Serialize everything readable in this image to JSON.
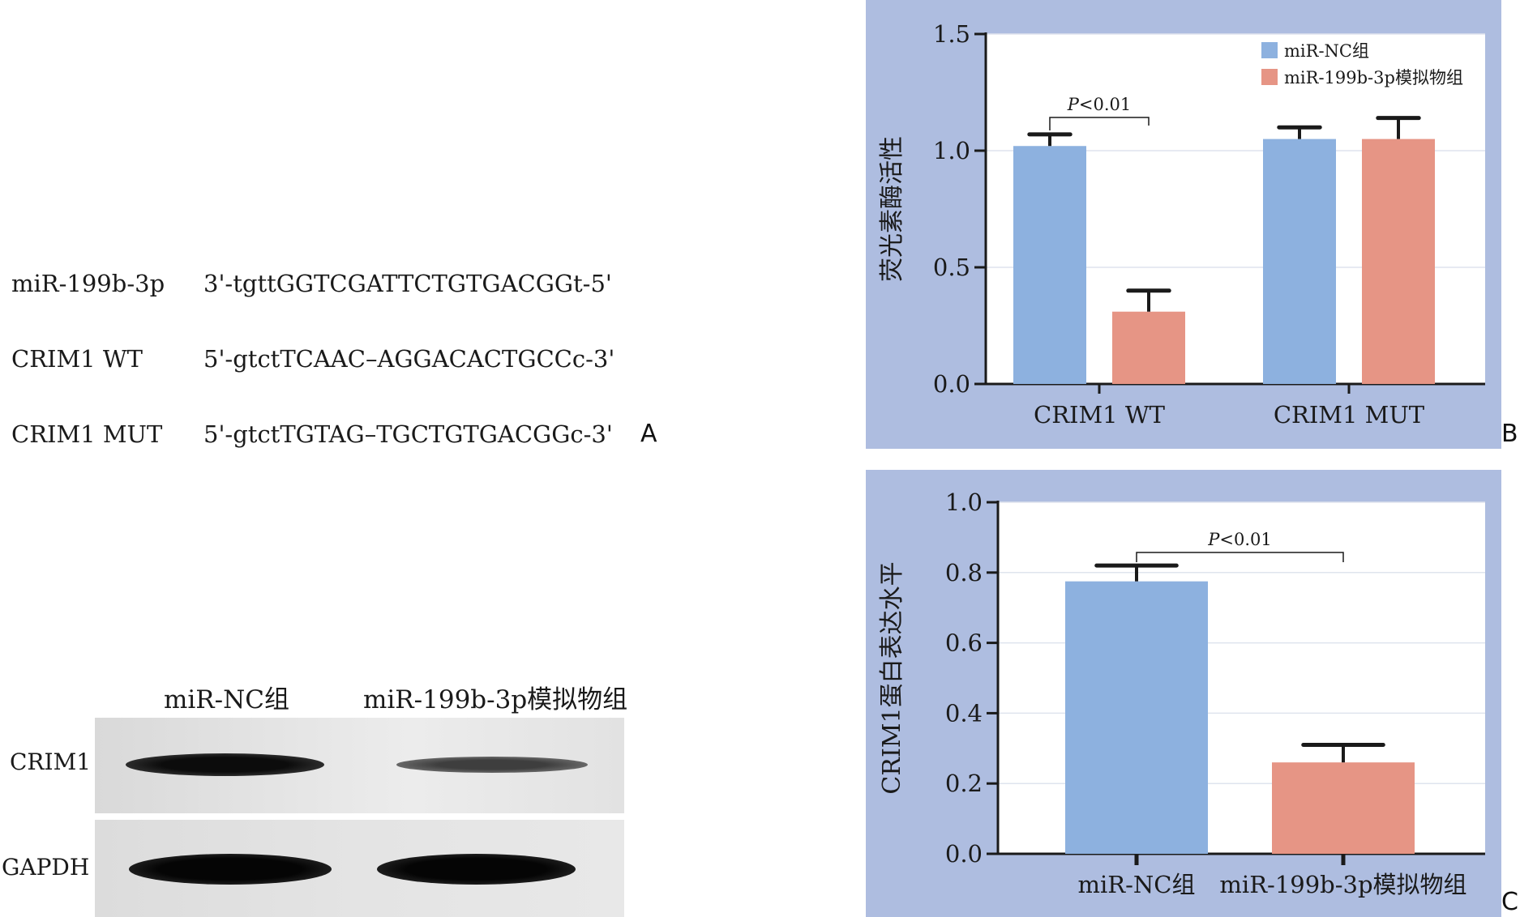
{
  "panel_labels": {
    "a": "A",
    "b": "B",
    "c": "C"
  },
  "sequences": [
    {
      "name": "miR-199b-3p",
      "seq": "3'-tgttGGTCGATTCTGTGACGGt-5'"
    },
    {
      "name": "CRIM1 WT",
      "seq": "5'-gtctTCAAC–AGGACACTGCCc-3'"
    },
    {
      "name": "CRIM1 MUT",
      "seq": "5'-gtctTGTAG–TGCTGTGACGGc-3'"
    }
  ],
  "western_blot": {
    "columns": [
      "miR-NC组",
      "miR-199b-3p模拟物组"
    ],
    "rows": [
      {
        "label": "CRIM1",
        "band_intensity": [
          0.95,
          0.55
        ]
      },
      {
        "label": "GAPDH",
        "band_intensity": [
          1.0,
          1.0
        ]
      }
    ]
  },
  "colors": {
    "nc": "#8db1df",
    "mimic": "#e69585",
    "panel_bg": "#aebde0"
  },
  "chart_data": [
    {
      "type": "bar",
      "ylabel": "荧光素酶活性",
      "categories": [
        "CRIM1 WT",
        "CRIM1 MUT"
      ],
      "series": [
        {
          "name": "miR-NC组",
          "values": [
            1.02,
            1.05
          ],
          "errors": [
            0.05,
            0.05
          ]
        },
        {
          "name": "miR-199b-3p模拟物组",
          "values": [
            0.31,
            1.05
          ],
          "errors": [
            0.09,
            0.09
          ]
        }
      ],
      "ylim": [
        0,
        1.5
      ],
      "yticks": [
        "0.0",
        "0.5",
        "1.0",
        "1.5"
      ],
      "ytick_values": [
        0,
        0.5,
        1.0,
        1.5
      ],
      "legend": "top-right",
      "grid": true,
      "annotation": {
        "italic": "P",
        "text": "<0.01",
        "pair": [
          0,
          1
        ]
      }
    },
    {
      "type": "bar",
      "ylabel": "CRIM1蛋白表达水平",
      "categories": [
        "miR-NC组",
        "miR-199b-3p模拟物组"
      ],
      "values": [
        0.775,
        0.26
      ],
      "errors": [
        0.045,
        0.05
      ],
      "ylim": [
        0,
        1.0
      ],
      "yticks": [
        "0.0",
        "0.2",
        "0.4",
        "0.6",
        "0.8",
        "1.0"
      ],
      "ytick_values": [
        0,
        0.2,
        0.4,
        0.6,
        0.8,
        1.0
      ],
      "grid": true,
      "annotation": {
        "italic": "P",
        "text": "<0.01",
        "pair": [
          0,
          1
        ]
      }
    }
  ]
}
